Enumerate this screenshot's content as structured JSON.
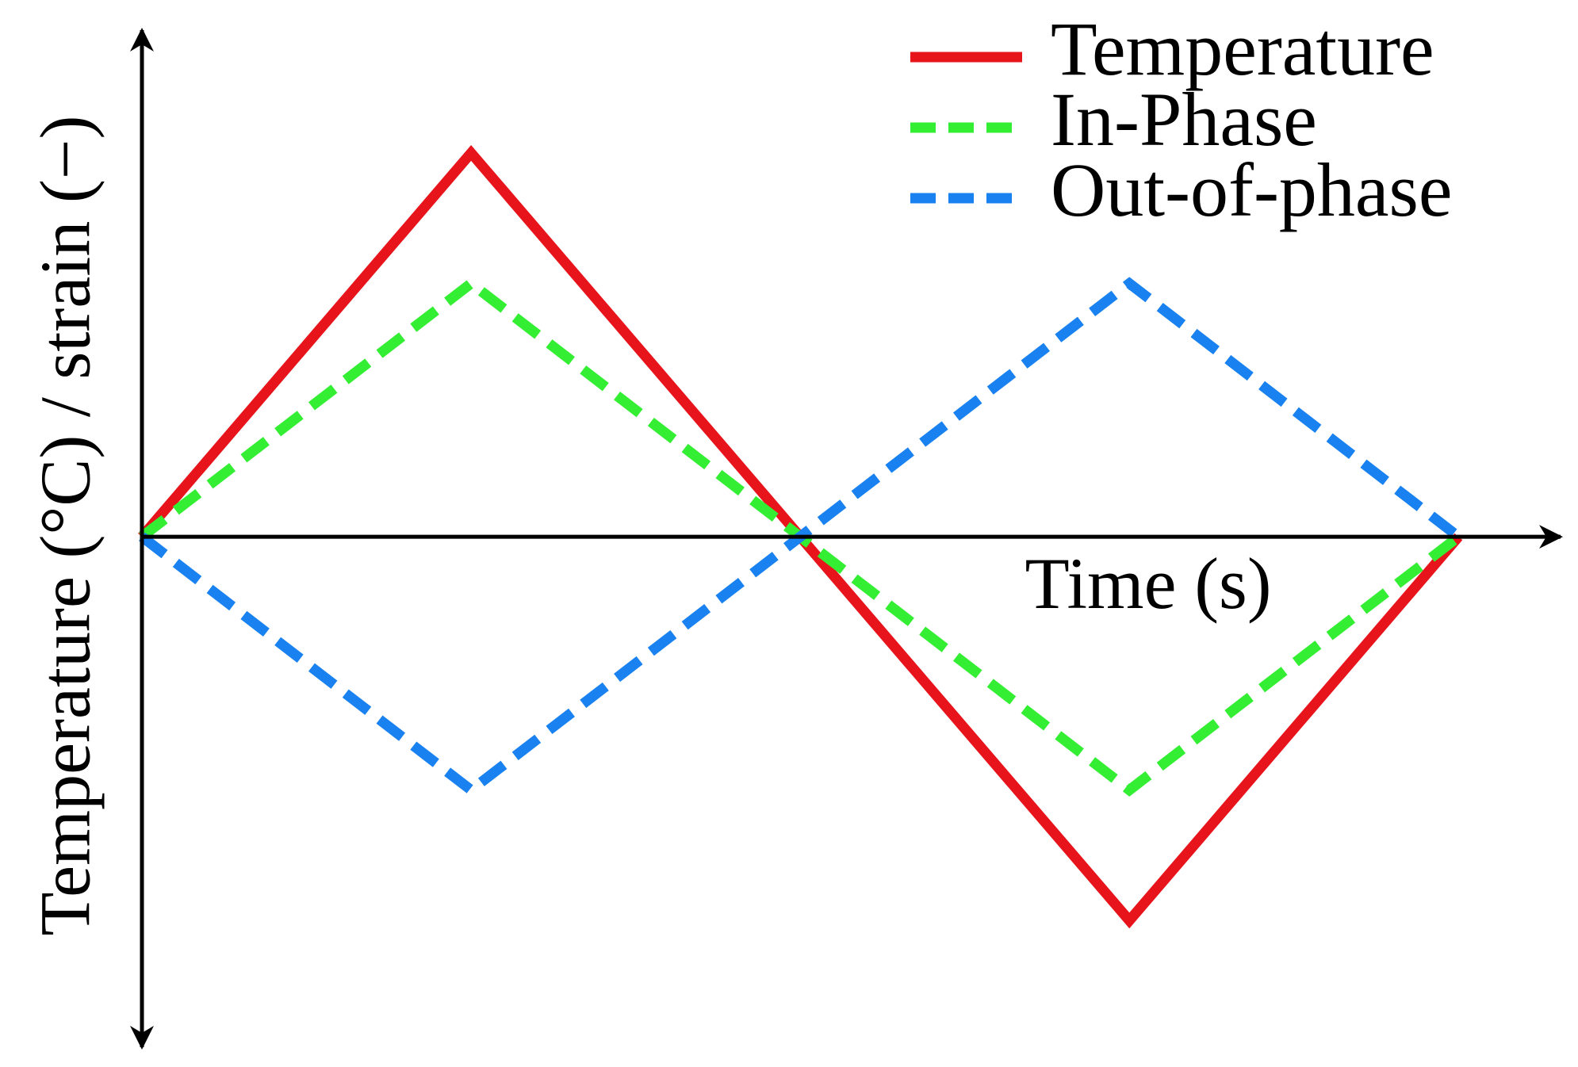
{
  "chart_data": {
    "type": "line",
    "x_label": "Time (s)",
    "y_label": "Temperature (°C) / strain (−)",
    "x": [
      0,
      1,
      2,
      3,
      4
    ],
    "xlim": [
      0,
      4.31
    ],
    "ylim": [
      -1.33,
      1.32
    ],
    "legend": "upper right",
    "series": [
      {
        "name": "Temperature",
        "color": "#e8141b",
        "dash": "solid",
        "values": [
          0,
          1,
          0,
          -1,
          0
        ]
      },
      {
        "name": "In-Phase",
        "color": "#33ee33",
        "dash": "dashed",
        "values": [
          0,
          0.66,
          0,
          -0.66,
          0
        ]
      },
      {
        "name": "Out-of-phase",
        "color": "#1a82f0",
        "dash": "dashed",
        "values": [
          0,
          -0.66,
          0,
          0.66,
          0
        ]
      }
    ]
  }
}
